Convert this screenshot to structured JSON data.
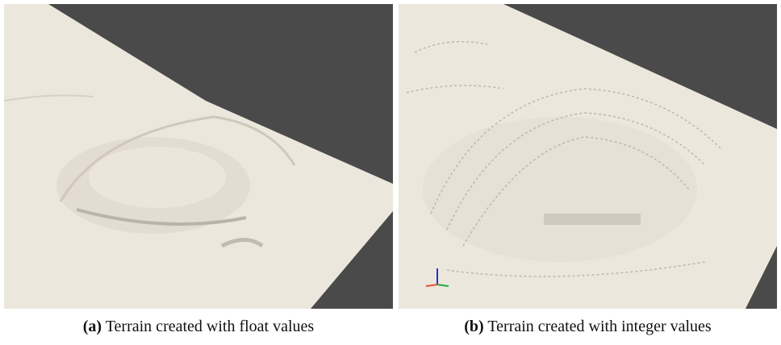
{
  "figures": [
    {
      "label": "(a)",
      "caption": "Terrain created with float values"
    },
    {
      "label": "(b)",
      "caption": "Terrain created with integer values"
    }
  ]
}
